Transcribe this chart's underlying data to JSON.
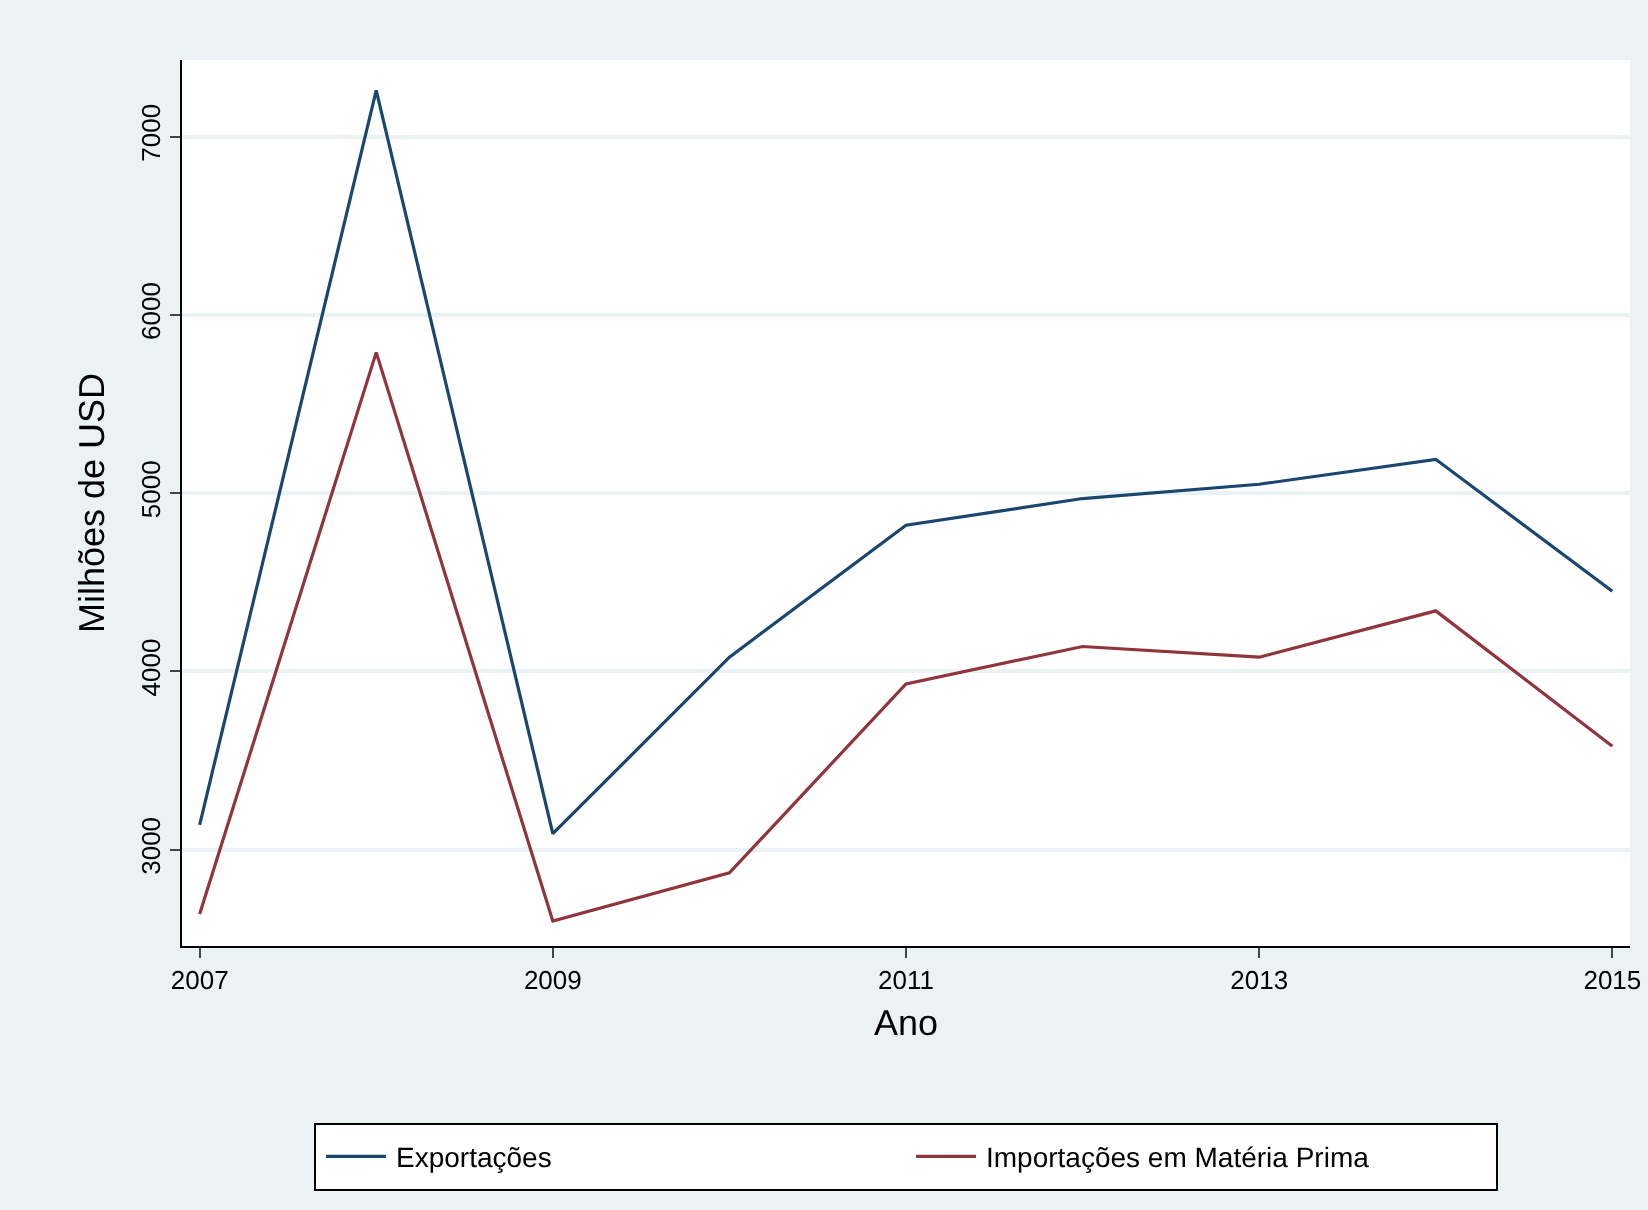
{
  "chart_data": {
    "type": "line",
    "xlabel": "Ano",
    "ylabel": "Milhões de USD",
    "x": [
      2007,
      2008,
      2009,
      2010,
      2011,
      2012,
      2013,
      2014,
      2015
    ],
    "series": [
      {
        "name": "Exportações",
        "color": "#1a476f",
        "values": [
          3140,
          7260,
          3090,
          4080,
          4820,
          4970,
          5050,
          5190,
          4450
        ]
      },
      {
        "name": "Importações em Matéria Prima",
        "color": "#90353b",
        "values": [
          2640,
          5790,
          2600,
          2870,
          3930,
          4140,
          4080,
          4340,
          3580
        ]
      }
    ],
    "xlim": [
      2006.9,
      2015.1
    ],
    "xticks": [
      2007,
      2009,
      2011,
      2013,
      2015
    ],
    "ylim": [
      2460,
      7430
    ],
    "yticks": [
      3000,
      4000,
      5000,
      6000,
      7000
    ],
    "grid": "y",
    "legend": "bottom",
    "marker": "none",
    "line_style": "solid"
  }
}
